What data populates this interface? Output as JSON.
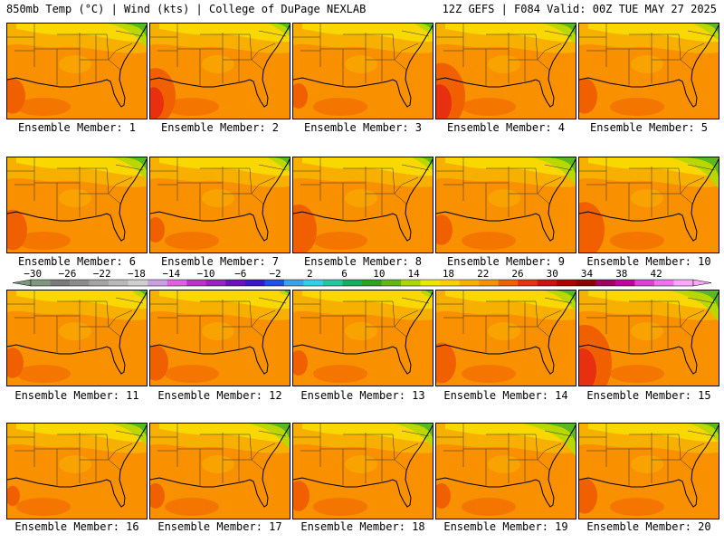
{
  "header": {
    "left": "850mb Temp (°C) | Wind (kts) | College of DuPage NEXLAB",
    "right": "12Z GEFS | F084 Valid: 00Z TUE MAY 27 2025"
  },
  "members": [
    "Ensemble Member: 1",
    "Ensemble Member: 2",
    "Ensemble Member: 3",
    "Ensemble Member: 4",
    "Ensemble Member: 5",
    "Ensemble Member: 6",
    "Ensemble Member: 7",
    "Ensemble Member: 8",
    "Ensemble Member: 9",
    "Ensemble Member: 10",
    "Ensemble Member: 11",
    "Ensemble Member: 12",
    "Ensemble Member: 13",
    "Ensemble Member: 14",
    "Ensemble Member: 15",
    "Ensemble Member: 16",
    "Ensemble Member: 17",
    "Ensemble Member: 18",
    "Ensemble Member: 19",
    "Ensemble Member: 20"
  ],
  "colorbar": {
    "ticks": [
      "−30",
      "−26",
      "−22",
      "−18",
      "−14",
      "−10",
      "−6",
      "−2",
      "2",
      "6",
      "10",
      "14",
      "18",
      "22",
      "26",
      "30",
      "34",
      "38",
      "42"
    ],
    "colors": [
      "#7f967f",
      "#7a7a7a",
      "#8c8c8c",
      "#a3a3a3",
      "#b8b8b8",
      "#cfcfcf",
      "#c8a0e0",
      "#e060e0",
      "#c030d0",
      "#9a20c8",
      "#6a10c0",
      "#3a18c8",
      "#2050e8",
      "#3aa0f0",
      "#30d0e8",
      "#20c8a0",
      "#10b060",
      "#30a020",
      "#60b810",
      "#a8d800",
      "#e8e800",
      "#f8d000",
      "#f8b000",
      "#f89000",
      "#f06000",
      "#e83010",
      "#d01010",
      "#b00000",
      "#8a0000",
      "#a00060",
      "#c000a0",
      "#e040d0",
      "#f070f0",
      "#f8a8f8"
    ],
    "panel_palette": {
      "green": "#5ab820",
      "yellow_green": "#b8d800",
      "yellow": "#f8d800",
      "light_orange": "#f8b000",
      "orange": "#f89000",
      "dark_orange": "#f06000",
      "red": "#e83010"
    }
  }
}
